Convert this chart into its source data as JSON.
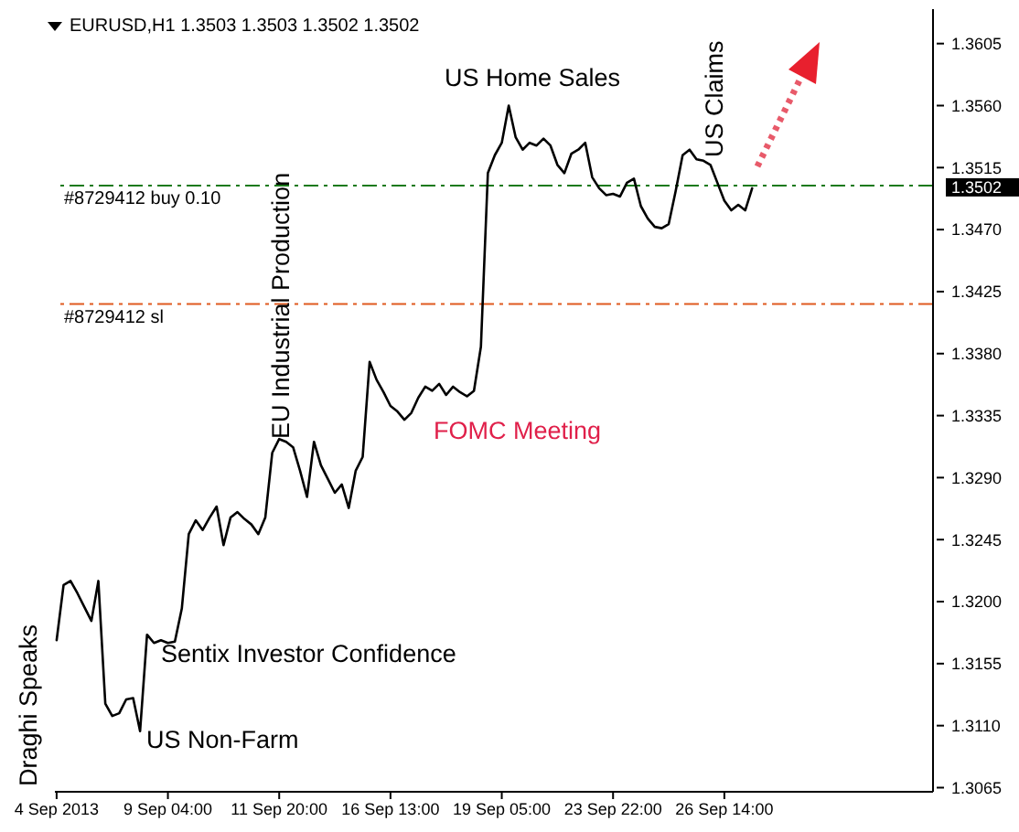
{
  "chart_data": {
    "type": "line",
    "title": "EURUSD,H1  1.3503 1.3503 1.3502 1.3502",
    "categories": [
      "4 Sep 2013",
      null,
      null,
      null,
      null,
      null,
      null,
      null,
      null,
      null,
      null,
      null,
      null,
      null,
      null,
      null,
      "9 Sep 04:00",
      null,
      null,
      null,
      null,
      null,
      null,
      null,
      null,
      null,
      null,
      null,
      null,
      null,
      null,
      null,
      "11 Sep 20:00",
      null,
      null,
      null,
      null,
      null,
      null,
      null,
      null,
      null,
      null,
      null,
      null,
      null,
      null,
      null,
      "16 Sep 13:00",
      null,
      null,
      null,
      null,
      null,
      null,
      null,
      null,
      null,
      null,
      null,
      null,
      null,
      null,
      null,
      "19 Sep 05:00",
      null,
      null,
      null,
      null,
      null,
      null,
      null,
      null,
      null,
      null,
      null,
      null,
      null,
      null,
      null,
      "23 Sep 22:00",
      null,
      null,
      null,
      null,
      null,
      null,
      null,
      null,
      null,
      null,
      null,
      null,
      null,
      null,
      null,
      "26 Sep 14:00",
      null,
      null,
      null,
      null
    ],
    "series": [
      {
        "color": "#000000",
        "values": [
          1.3172,
          1.3212,
          1.3215,
          1.3206,
          1.3196,
          1.3186,
          1.3215,
          1.3126,
          1.3117,
          1.3119,
          1.3129,
          1.313,
          1.3106,
          1.3176,
          1.317,
          1.3172,
          1.317,
          1.3171,
          1.3195,
          1.3249,
          1.3259,
          1.3252,
          1.3261,
          1.3269,
          1.3241,
          1.3261,
          1.3265,
          1.326,
          1.3256,
          1.3249,
          1.3261,
          1.3308,
          1.3318,
          1.3316,
          1.3312,
          1.3295,
          1.3276,
          1.3316,
          1.3299,
          1.3289,
          1.3279,
          1.3285,
          1.3268,
          1.3295,
          1.3305,
          1.3374,
          1.3361,
          1.3352,
          1.3342,
          1.3338,
          1.3332,
          1.3337,
          1.3348,
          1.3356,
          1.3353,
          1.3358,
          1.335,
          1.3356,
          1.3352,
          1.3349,
          1.3353,
          1.3385,
          1.3511,
          1.3524,
          1.3533,
          1.356,
          1.3537,
          1.3528,
          1.3533,
          1.3531,
          1.3536,
          1.3531,
          1.3517,
          1.3511,
          1.3525,
          1.3528,
          1.3533,
          1.3508,
          1.35,
          1.3495,
          1.3496,
          1.3494,
          1.3504,
          1.3507,
          1.3487,
          1.3478,
          1.3472,
          1.3471,
          1.3474,
          1.3498,
          1.3524,
          1.3528,
          1.3521,
          1.352,
          1.3517,
          1.3504,
          1.3491,
          1.3484,
          1.3488,
          1.3484,
          1.35
        ]
      }
    ],
    "ylim": [
      1.3062,
      1.363
    ],
    "yticks": [
      1.3065,
      {
        "value": 1.311,
        "label": "1.3110"
      },
      1.3155,
      {
        "value": 1.32,
        "label": "1.3200"
      },
      1.3245,
      {
        "value": 1.329,
        "label": "1.3290"
      },
      1.3335,
      {
        "value": 1.338,
        "label": "1.3380"
      },
      1.3425,
      {
        "value": 1.347,
        "label": "1.3470"
      },
      1.3515,
      {
        "value": 1.356,
        "label": "1.3560"
      },
      1.3605,
      1.3502
    ],
    "ref_lines": [
      {
        "axis": "y",
        "value": 1.3502,
        "label": "#8729412 buy 0.10",
        "color": "#1a7a1a",
        "line_style": "dashdot"
      },
      {
        "axis": "y",
        "value": 1.3416,
        "label": "#8729412 sl",
        "color": "#e05a20",
        "line_style": "dashdot"
      }
    ],
    "annotations": [
      "Draghi Speaks",
      "US Non-Farm",
      "Sentix Investor Confidence",
      "EU Industrial Production",
      "FOMC Meeting",
      "US Home Sales",
      "US Claims"
    ],
    "grid": false,
    "legend": false,
    "marker": "none",
    "line_style": "solid"
  }
}
